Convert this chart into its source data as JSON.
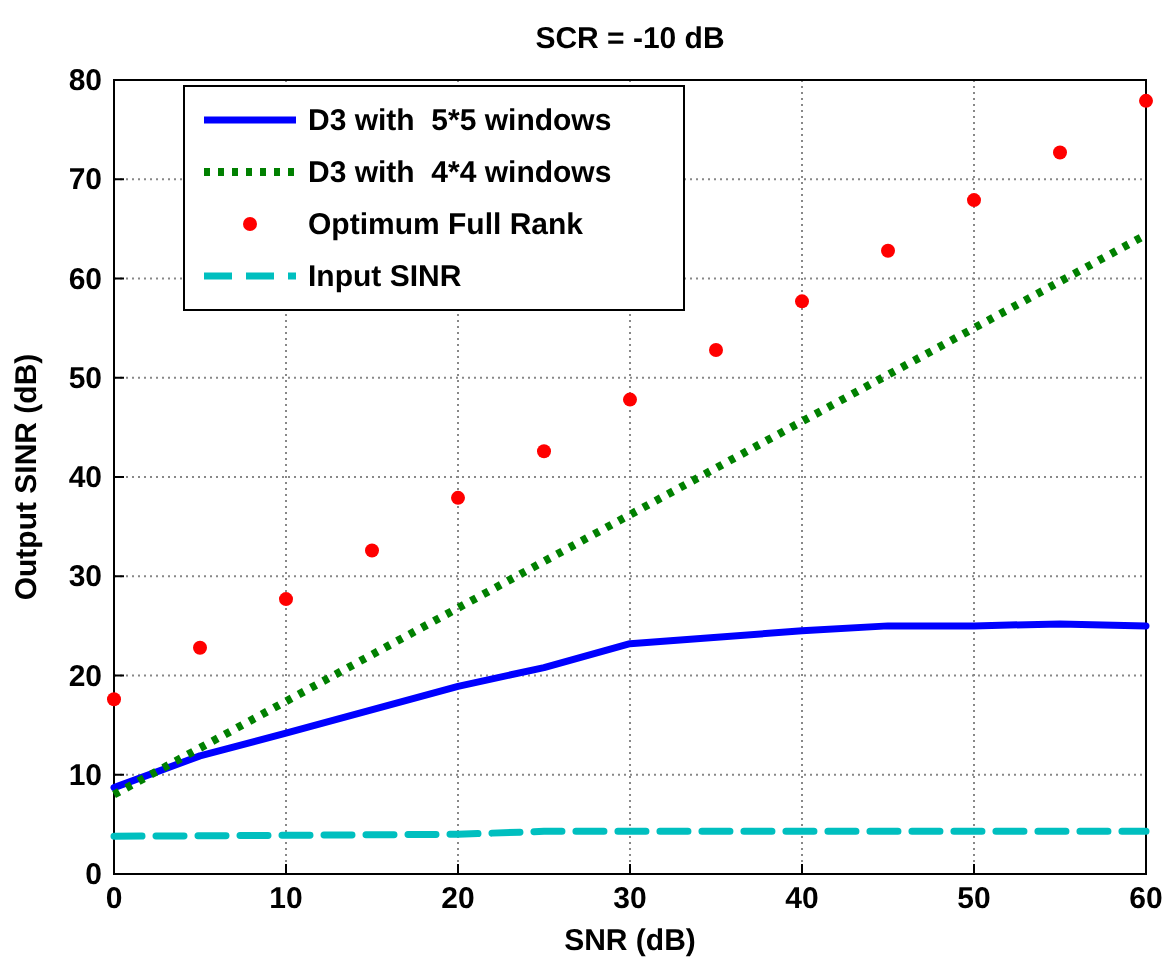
{
  "chart_data": {
    "type": "line",
    "title": "SCR = -10 dB",
    "xlabel": "SNR (dB)",
    "ylabel": "Output SINR (dB)",
    "xlim": [
      0,
      60
    ],
    "ylim": [
      0,
      80
    ],
    "xticks": [
      0,
      10,
      20,
      30,
      40,
      50,
      60
    ],
    "yticks": [
      0,
      10,
      20,
      30,
      40,
      50,
      60,
      70,
      80
    ],
    "grid": true,
    "legend": "top left",
    "series": [
      {
        "name": "D3 with  5*5 windows",
        "color": "#0000ff",
        "line_style": "solid",
        "x": [
          0,
          5,
          10,
          20,
          25,
          30,
          40,
          45,
          50,
          55,
          60
        ],
        "values": [
          8.7,
          11.9,
          14.2,
          18.9,
          20.8,
          23.2,
          24.5,
          25.0,
          25.0,
          25.2,
          25.0
        ]
      },
      {
        "name": "D3 with  4*4 windows",
        "color": "#008000",
        "line_style": "dotted",
        "x": [
          0,
          60
        ],
        "values": [
          8.0,
          64.4
        ]
      },
      {
        "name": "Optimum Full Rank",
        "color": "#ff0000",
        "type": "scatter",
        "marker": "circle",
        "x": [
          0,
          5,
          10,
          15,
          20,
          25,
          30,
          35,
          40,
          45,
          50,
          55,
          60
        ],
        "values": [
          17.6,
          22.8,
          27.7,
          32.6,
          37.9,
          42.6,
          47.8,
          52.8,
          57.7,
          62.8,
          67.9,
          72.7,
          77.9
        ]
      },
      {
        "name": "Input SINR",
        "color": "#00bfbf",
        "line_style": "dashed",
        "x": [
          0,
          20,
          25,
          60
        ],
        "values": [
          3.8,
          4.0,
          4.3,
          4.3
        ]
      }
    ]
  }
}
